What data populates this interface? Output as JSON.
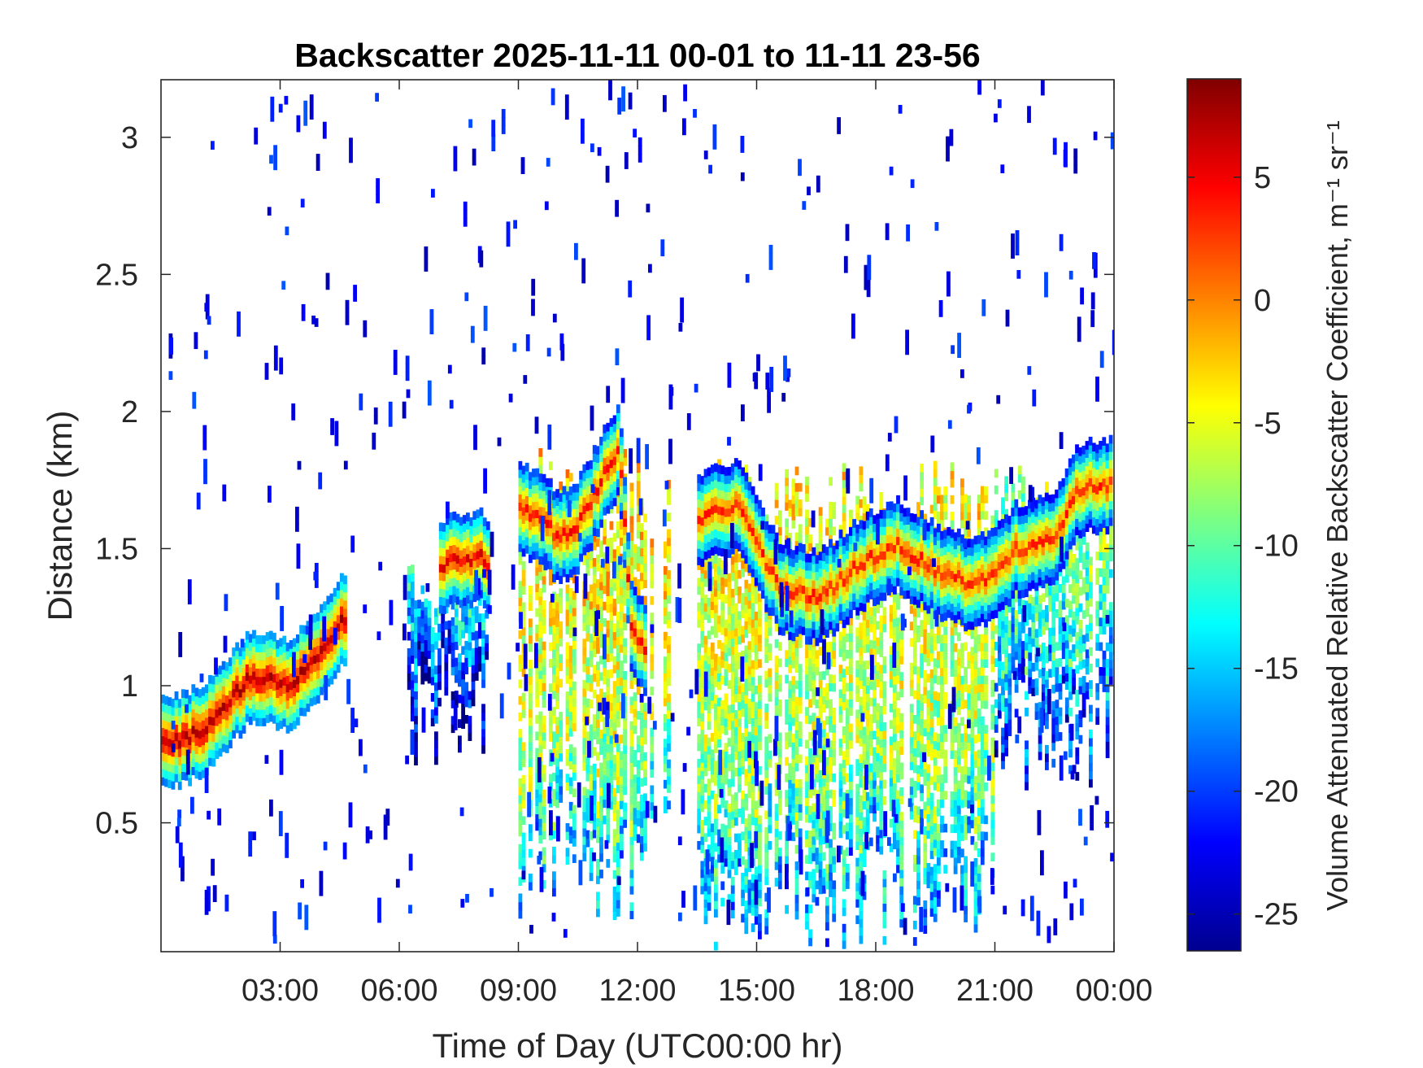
{
  "chart_data": {
    "type": "heatmap",
    "title": "Backscatter 2025-11-11 00-01 to 11-11 23-56",
    "xlabel": "Time of Day (UTC00:00 hr)",
    "ylabel": "Distance (km)",
    "xlim": [
      0.0,
      24.0
    ],
    "ylim": [
      0.03,
      3.21
    ],
    "x_ticks": [
      {
        "value": 3,
        "label": "03:00"
      },
      {
        "value": 6,
        "label": "06:00"
      },
      {
        "value": 9,
        "label": "09:00"
      },
      {
        "value": 12,
        "label": "12:00"
      },
      {
        "value": 15,
        "label": "15:00"
      },
      {
        "value": 18,
        "label": "18:00"
      },
      {
        "value": 21,
        "label": "21:00"
      },
      {
        "value": 24,
        "label": "00:00"
      }
    ],
    "y_ticks": [
      {
        "value": 0.5,
        "label": "0.5"
      },
      {
        "value": 1.0,
        "label": "1"
      },
      {
        "value": 1.5,
        "label": "1.5"
      },
      {
        "value": 2.0,
        "label": "2"
      },
      {
        "value": 2.5,
        "label": "2.5"
      },
      {
        "value": 3.0,
        "label": "3"
      }
    ],
    "colorbar": {
      "label": "Volume Attenuated Relative Backscatter Coefficient, m⁻¹ sr⁻¹",
      "clim": [
        -26.5,
        9
      ],
      "colormap": "jet",
      "ticks": [
        {
          "value": 5,
          "label": "5"
        },
        {
          "value": 0,
          "label": "0"
        },
        {
          "value": -5,
          "label": "-5"
        },
        {
          "value": -10,
          "label": "-10"
        },
        {
          "value": -15,
          "label": "-15"
        },
        {
          "value": -20,
          "label": "-20"
        },
        {
          "value": -25,
          "label": "-25"
        }
      ]
    },
    "grid": false,
    "features": [
      {
        "kind": "layer",
        "x": [
          0.0,
          0.3,
          0.6,
          0.9,
          1.2,
          1.5,
          1.8,
          2.1,
          2.4,
          2.7,
          3.0,
          3.3,
          3.6,
          3.9,
          4.2,
          4.6
        ],
        "y": [
          0.77,
          0.78,
          0.8,
          0.81,
          0.84,
          0.9,
          0.95,
          1.0,
          1.01,
          1.0,
          0.99,
          1.0,
          1.05,
          1.1,
          1.16,
          1.24
        ],
        "value": 7
      },
      {
        "kind": "layer",
        "x": [
          7.0,
          7.3,
          7.7,
          8.0,
          8.2
        ],
        "y": [
          1.4,
          1.45,
          1.43,
          1.46,
          1.4
        ],
        "value": 5
      },
      {
        "kind": "layer",
        "x": [
          9.0,
          9.5,
          10.0,
          10.5,
          11.0,
          11.5,
          11.8,
          12.2
        ],
        "y": [
          1.62,
          1.6,
          1.52,
          1.58,
          1.72,
          1.85,
          1.22,
          1.08
        ],
        "value": 4
      },
      {
        "kind": "layer",
        "x": [
          13.5,
          14.5,
          15.5,
          16.5,
          17.5,
          18.5,
          19.5,
          20.5,
          21.5,
          22.5,
          23.0,
          23.9
        ],
        "y": [
          1.6,
          1.64,
          1.35,
          1.3,
          1.42,
          1.5,
          1.4,
          1.35,
          1.48,
          1.52,
          1.7,
          1.72
        ],
        "value": 3
      },
      {
        "kind": "cloud",
        "x": [
          6.2,
          8.3
        ],
        "y": [
          0.7,
          1.55
        ],
        "value": -18
      },
      {
        "kind": "cloud",
        "x": [
          9.0,
          12.8
        ],
        "y": [
          0.1,
          1.85
        ],
        "value": -9
      },
      {
        "kind": "cloud",
        "x": [
          13.5,
          20.9
        ],
        "y": [
          0.03,
          1.8
        ],
        "value": -10
      },
      {
        "kind": "cloud",
        "x": [
          20.9,
          24.0
        ],
        "y": [
          0.6,
          1.8
        ],
        "value": -14
      }
    ]
  }
}
